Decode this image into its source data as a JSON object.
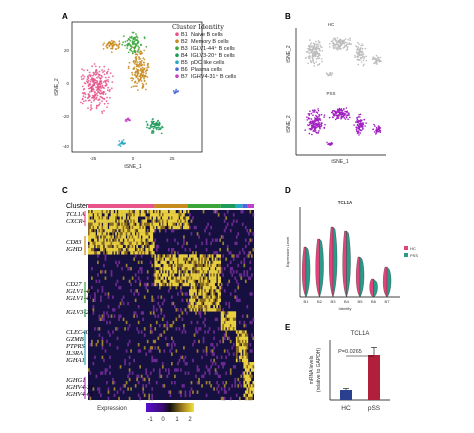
{
  "panels": {
    "A": {
      "letter": "A",
      "legend_title": "Cluster Identity",
      "legend_items": [
        {
          "code": "B1",
          "label": "Naive B cells",
          "color": "#e8538a"
        },
        {
          "code": "B2",
          "label": "Memory B cells",
          "color": "#c78a1c"
        },
        {
          "code": "B3",
          "label": "IGLV1-44⁺ B cells",
          "color": "#3aa63a"
        },
        {
          "code": "B4",
          "label": "IGLV3-20⁺ B cells",
          "color": "#1e9a5a"
        },
        {
          "code": "B5",
          "label": "pDC like cells",
          "color": "#29a8c2"
        },
        {
          "code": "B6",
          "label": "Plasma cells",
          "color": "#4a66d8"
        },
        {
          "code": "B7",
          "label": "IGHV4-31⁺ B cells",
          "color": "#c040c8"
        }
      ],
      "xlabel": "tSNE_1",
      "ylabel": "tSNE_2",
      "xticks": [
        "-25",
        "0",
        "25"
      ],
      "yticks": [
        "20",
        "0",
        "-20",
        "-40"
      ]
    },
    "B": {
      "letter": "B",
      "group_top": "HC",
      "group_bottom": "PSS",
      "xlabel": "tSNE_1",
      "ylabel": "tSNE_2",
      "ylabel2": "tSNE_2",
      "top_color": "#bdbdbd",
      "bottom_color": "#a020c0"
    },
    "C": {
      "letter": "C",
      "cluster_label": "Cluster",
      "genes": [
        "TCL1A",
        "CXCR4",
        "CD83",
        "IGHD",
        "CD27",
        "IGLV1-44",
        "IGLV1-40",
        "IGLV3-20",
        "CLEC4C",
        "GZMB",
        "PTPRS",
        "IL3RA",
        "IGHA1",
        "IGHG1",
        "IGHV4-31",
        "IGHV4-61"
      ],
      "legend_label": "Expression",
      "legend_ticks": [
        "-1",
        "0",
        "1",
        "2"
      ],
      "colors": {
        "low": "#5a0fd0",
        "mid": "#111111",
        "high": "#f3e23a"
      }
    },
    "D": {
      "letter": "D",
      "title": "TCL1A",
      "ylabel": "Expression Level",
      "xlabel": "Identity",
      "categories": [
        "B1",
        "B2",
        "B3",
        "B4",
        "B5",
        "B6",
        "B7"
      ],
      "legend": [
        {
          "label": "HC",
          "color": "#e0457a"
        },
        {
          "label": "PSS",
          "color": "#2a9a8a"
        }
      ]
    },
    "E": {
      "letter": "E",
      "title": "TCL1A",
      "ylabel": "mRNA levels\n(relative to GAPDH)",
      "ylabel_line1": "mRNA levels",
      "ylabel_line2": "(relative to GAPDH)",
      "pvalue": "P=0.0265",
      "categories": [
        "HC",
        "pSS"
      ]
    }
  },
  "chart_data": [
    {
      "type": "bar",
      "title": "TCL1A",
      "categories": [
        "HC",
        "pSS"
      ],
      "values": [
        1.0,
        4.5
      ],
      "errors": [
        0.15,
        0.75
      ],
      "ylabel": "mRNA levels (relative to GAPDH)",
      "annotation": "P=0.0265",
      "colors": [
        "#2b3f8f",
        "#b0203a"
      ]
    }
  ]
}
